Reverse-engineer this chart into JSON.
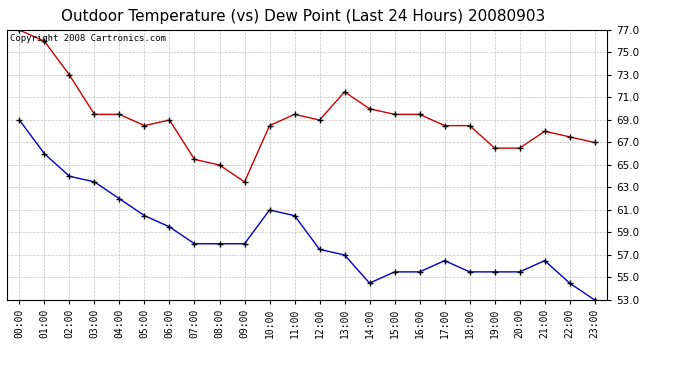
{
  "title": "Outdoor Temperature (vs) Dew Point (Last 24 Hours) 20080903",
  "copyright_text": "Copyright 2008 Cartronics.com",
  "hours": [
    "00:00",
    "01:00",
    "02:00",
    "03:00",
    "04:00",
    "05:00",
    "06:00",
    "07:00",
    "08:00",
    "09:00",
    "10:00",
    "11:00",
    "12:00",
    "13:00",
    "14:00",
    "15:00",
    "16:00",
    "17:00",
    "18:00",
    "19:00",
    "20:00",
    "21:00",
    "22:00",
    "23:00"
  ],
  "temp": [
    69.0,
    66.0,
    64.0,
    63.5,
    62.0,
    60.5,
    59.5,
    58.0,
    58.0,
    58.0,
    61.0,
    60.5,
    57.5,
    57.0,
    54.5,
    55.5,
    55.5,
    56.5,
    55.5,
    55.5,
    55.5,
    56.5,
    54.5,
    53.0
  ],
  "dewpoint": [
    77.0,
    76.0,
    73.0,
    69.5,
    69.5,
    68.5,
    69.0,
    65.5,
    65.0,
    63.5,
    68.5,
    69.5,
    69.0,
    71.5,
    70.0,
    69.5,
    69.5,
    68.5,
    68.5,
    66.5,
    66.5,
    68.0,
    67.5,
    67.0
  ],
  "temp_color": "#0000cc",
  "dewpoint_color": "#cc0000",
  "bg_color": "#ffffff",
  "grid_color": "#c0c0c0",
  "ylim_min": 53.0,
  "ylim_max": 77.0,
  "ytick_step": 2.0,
  "title_fontsize": 11,
  "copyright_fontsize": 6.5
}
